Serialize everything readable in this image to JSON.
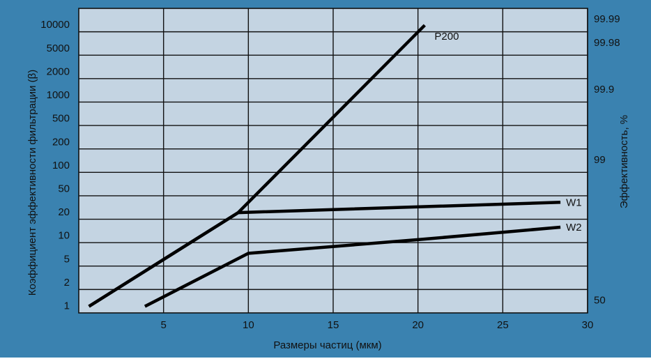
{
  "colors": {
    "frame": "#3a82b0",
    "plot_background": "#c4d4e2",
    "grid": "#111111",
    "lines": "#000000"
  },
  "chart_data": {
    "type": "line",
    "title": "",
    "xlabel": "Размеры частиц (мкм)",
    "ylabel": "Коэффициент эффективности фильтрации (β)",
    "y2label": "Эффективность, %",
    "xlim": [
      0,
      30
    ],
    "x_ticks": [
      5,
      10,
      15,
      20,
      25,
      30
    ],
    "x_tick_labels": [
      "5",
      "10",
      "15",
      "20",
      "25",
      "30"
    ],
    "y_tick_labels": [
      "10000",
      "5000",
      "2000",
      "1000",
      "500",
      "200",
      "100",
      "50",
      "20",
      "10",
      "5",
      "2",
      "1"
    ],
    "y2_tick_labels": [
      {
        "label": "99.99",
        "at_beta": 10000
      },
      {
        "label": "99.98",
        "at_beta": 5000
      },
      {
        "label": "99.9",
        "at_beta": 1000
      },
      {
        "label": "99",
        "at_beta": 100
      },
      {
        "label": "50",
        "at_beta": 1
      }
    ],
    "grid": true,
    "legend": "none",
    "series": [
      {
        "name": "P200",
        "points": [
          [
            0.6,
            1
          ],
          [
            9.4,
            20
          ],
          [
            20.4,
            10000
          ]
        ]
      },
      {
        "name": "W1",
        "points": [
          [
            0.6,
            1
          ],
          [
            9.4,
            20
          ],
          [
            28.4,
            30
          ]
        ]
      },
      {
        "name": "W2",
        "points": [
          [
            3.9,
            1
          ],
          [
            10,
            6
          ],
          [
            20,
            9
          ],
          [
            28.4,
            13
          ]
        ]
      }
    ]
  }
}
